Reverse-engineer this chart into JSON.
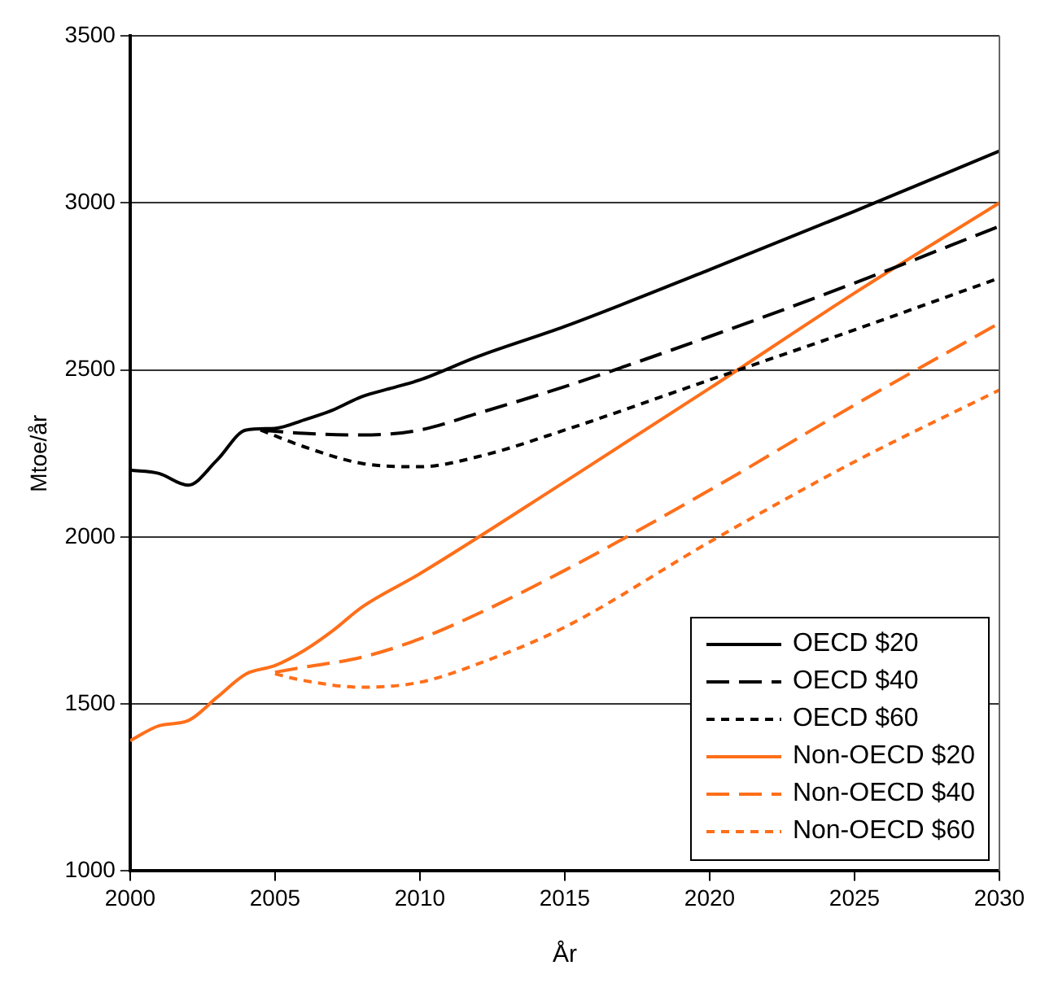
{
  "chart_data": {
    "type": "line",
    "xlabel": "År",
    "ylabel": "Mtoe/år",
    "xlim": [
      2000,
      2030
    ],
    "xticks": [
      2000,
      2005,
      2010,
      2015,
      2020,
      2025,
      2030
    ],
    "ylim": [
      1000,
      3500
    ],
    "yticks": [
      1000,
      1500,
      2000,
      2500,
      3000,
      3500
    ],
    "grid": "y",
    "legend": "bottom right",
    "marker": "none",
    "series": [
      {
        "name": "OECD $20",
        "color": "#000000",
        "line_style": "solid",
        "x": [
          2000,
          2001,
          2002,
          2003,
          2004,
          2005,
          2006,
          2007,
          2008,
          2009,
          2010,
          2012,
          2015,
          2020,
          2025,
          2030
        ],
        "values": [
          2200,
          2190,
          2155,
          2230,
          2320,
          2325,
          2350,
          2380,
          2420,
          2445,
          2470,
          2540,
          2630,
          2800,
          2975,
          3155
        ]
      },
      {
        "name": "OECD $40",
        "color": "#000000",
        "line_style": "dashed",
        "x": [
          2004.5,
          2006,
          2008,
          2010,
          2012,
          2015,
          2020,
          2025,
          2030
        ],
        "values": [
          2320,
          2310,
          2305,
          2320,
          2370,
          2450,
          2600,
          2760,
          2930
        ]
      },
      {
        "name": "OECD $60",
        "color": "#000000",
        "line_style": "dotted",
        "x": [
          2004.5,
          2006,
          2008,
          2010,
          2012,
          2015,
          2020,
          2025,
          2030
        ],
        "values": [
          2320,
          2270,
          2220,
          2210,
          2240,
          2320,
          2470,
          2620,
          2775
        ]
      },
      {
        "name": "Non-OECD $20",
        "color": "#ff6f1a",
        "line_style": "solid",
        "x": [
          2000,
          2001,
          2002,
          2003,
          2004,
          2005,
          2006,
          2007,
          2008,
          2010,
          2015,
          2020,
          2025,
          2030
        ],
        "values": [
          1390,
          1435,
          1450,
          1520,
          1590,
          1615,
          1660,
          1720,
          1790,
          1890,
          2165,
          2445,
          2730,
          3000
        ]
      },
      {
        "name": "Non-OECD $40",
        "color": "#ff6f1a",
        "line_style": "dashed",
        "x": [
          2005,
          2006,
          2008,
          2010,
          2012,
          2015,
          2020,
          2025,
          2030
        ],
        "values": [
          1595,
          1610,
          1640,
          1695,
          1770,
          1900,
          2140,
          2395,
          2640
        ]
      },
      {
        "name": "Non-OECD $60",
        "color": "#ff6f1a",
        "line_style": "dotted",
        "x": [
          2005,
          2006,
          2008,
          2010,
          2012,
          2015,
          2020,
          2025,
          2030
        ],
        "values": [
          1590,
          1570,
          1550,
          1565,
          1620,
          1730,
          1985,
          2225,
          2440
        ]
      }
    ]
  }
}
